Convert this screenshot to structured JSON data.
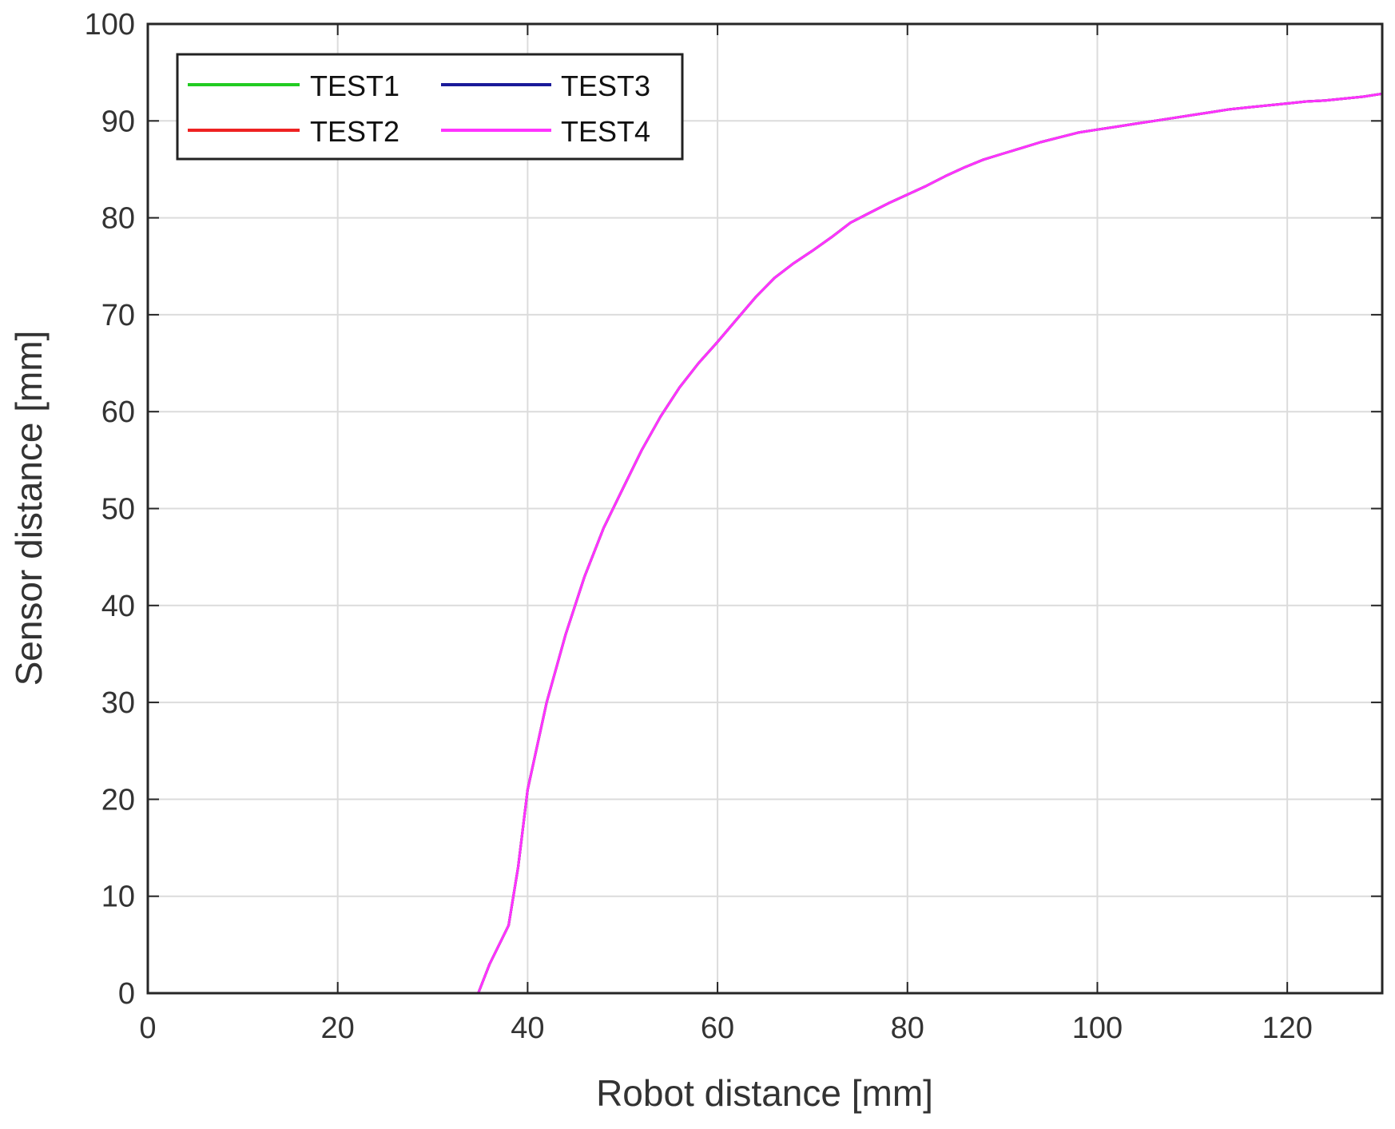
{
  "chart_data": {
    "type": "line",
    "xlabel": "Robot distance [mm]",
    "ylabel": "Sensor distance [mm]",
    "xlim": [
      0,
      130
    ],
    "ylim": [
      0,
      100
    ],
    "xticks": [
      0,
      20,
      40,
      60,
      80,
      100,
      120
    ],
    "yticks": [
      0,
      10,
      20,
      30,
      40,
      50,
      60,
      70,
      80,
      90,
      100
    ],
    "xtick_labels": [
      "0",
      "20",
      "40",
      "60",
      "80",
      "100",
      "120"
    ],
    "ytick_labels": [
      "0",
      "10",
      "20",
      "30",
      "40",
      "50",
      "60",
      "70",
      "80",
      "90",
      "100"
    ],
    "grid": true,
    "legend_position": "top-left",
    "x": [
      0,
      5,
      10,
      15,
      20,
      25,
      30,
      34.8,
      36,
      38,
      39,
      40,
      42,
      44,
      46,
      48,
      50,
      52,
      54,
      56,
      58,
      60,
      62,
      64,
      66,
      68,
      70,
      72,
      74,
      76,
      78,
      80,
      82,
      84,
      86,
      88,
      90,
      92,
      94,
      96,
      98,
      100,
      102,
      104,
      106,
      108,
      110,
      112,
      114,
      116,
      118,
      120,
      122,
      124,
      126,
      128,
      130
    ],
    "series": [
      {
        "name": "TEST1",
        "color": "#22cc22",
        "values": [
          0,
          0,
          0,
          0,
          0,
          0,
          0,
          0,
          3,
          7,
          13,
          21,
          30,
          37,
          43,
          48,
          52,
          56,
          59.5,
          62.5,
          65,
          67.2,
          69.5,
          71.8,
          73.8,
          75.3,
          76.6,
          78,
          79.5,
          80.5,
          81.5,
          82.4,
          83.3,
          84.3,
          85.2,
          86,
          86.6,
          87.2,
          87.8,
          88.3,
          88.8,
          89.1,
          89.4,
          89.7,
          90,
          90.3,
          90.6,
          90.9,
          91.2,
          91.4,
          91.6,
          91.8,
          92,
          92.1,
          92.3,
          92.5,
          92.8
        ]
      },
      {
        "name": "TEST2",
        "color": "#ee2222",
        "values": [
          0,
          0,
          0,
          0,
          0,
          0,
          0,
          0,
          3,
          7,
          13,
          21,
          30,
          37,
          43,
          48,
          52,
          56,
          59.5,
          62.5,
          65,
          67.2,
          69.5,
          71.8,
          73.8,
          75.3,
          76.6,
          78,
          79.5,
          80.5,
          81.5,
          82.4,
          83.3,
          84.3,
          85.2,
          86,
          86.6,
          87.2,
          87.8,
          88.3,
          88.8,
          89.1,
          89.4,
          89.7,
          90,
          90.3,
          90.6,
          90.9,
          91.2,
          91.4,
          91.6,
          91.8,
          92,
          92.1,
          92.3,
          92.5,
          92.8
        ]
      },
      {
        "name": "TEST3",
        "color": "#1a1a99",
        "values": [
          0,
          0,
          0,
          0,
          0,
          0,
          0,
          0,
          3,
          7,
          13,
          21,
          30,
          37,
          43,
          48,
          52,
          56,
          59.5,
          62.5,
          65,
          67.2,
          69.5,
          71.8,
          73.8,
          75.3,
          76.6,
          78,
          79.5,
          80.5,
          81.5,
          82.4,
          83.3,
          84.3,
          85.2,
          86,
          86.6,
          87.2,
          87.8,
          88.3,
          88.8,
          89.1,
          89.4,
          89.7,
          90,
          90.3,
          90.6,
          90.9,
          91.2,
          91.4,
          91.6,
          91.8,
          92,
          92.1,
          92.3,
          92.5,
          92.8
        ]
      },
      {
        "name": "TEST4",
        "color": "#ff33ff",
        "values": [
          0,
          0,
          0,
          0,
          0,
          0,
          0,
          0,
          3,
          7,
          13,
          21,
          30,
          37,
          43,
          48,
          52,
          56,
          59.5,
          62.5,
          65,
          67.2,
          69.5,
          71.8,
          73.8,
          75.3,
          76.6,
          78,
          79.5,
          80.5,
          81.5,
          82.4,
          83.3,
          84.3,
          85.2,
          86,
          86.6,
          87.2,
          87.8,
          88.3,
          88.8,
          89.1,
          89.4,
          89.7,
          90,
          90.3,
          90.6,
          90.9,
          91.2,
          91.4,
          91.6,
          91.8,
          92,
          92.1,
          92.3,
          92.5,
          92.8
        ]
      }
    ]
  }
}
